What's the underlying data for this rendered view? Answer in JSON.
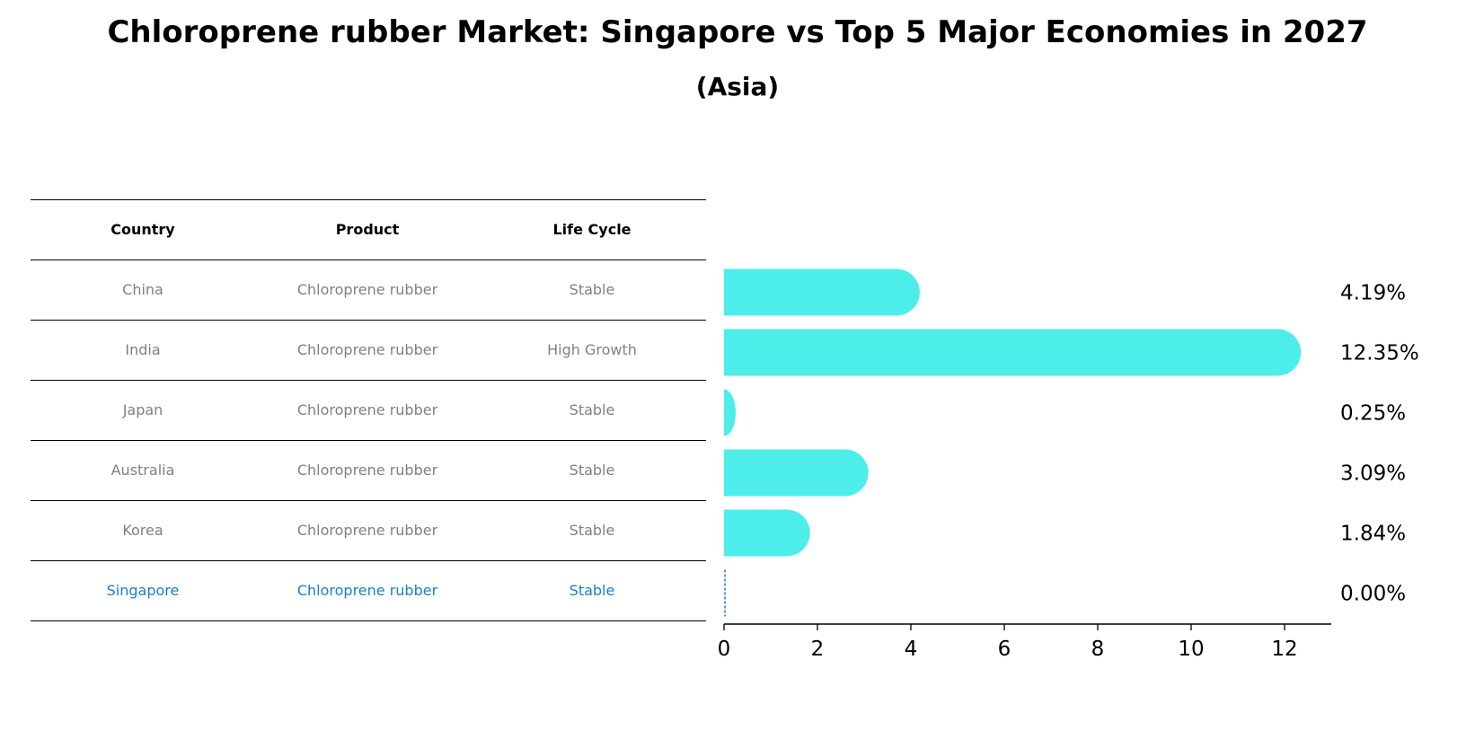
{
  "title": "Chloroprene rubber Market: Singapore vs Top 5 Major Economies in 2027",
  "subtitle": "(Asia)",
  "table": {
    "headers": [
      "Country",
      "Product",
      "Life Cycle"
    ],
    "rows": [
      [
        "China",
        "Chloroprene rubber",
        "Stable"
      ],
      [
        "India",
        "Chloroprene rubber",
        "High Growth"
      ],
      [
        "Japan",
        "Chloroprene rubber",
        "Stable"
      ],
      [
        "Australia",
        "Chloroprene rubber",
        "Stable"
      ],
      [
        "Korea",
        "Chloroprene rubber",
        "Stable"
      ],
      [
        "Singapore",
        "Chloroprene rubber",
        "Stable"
      ]
    ],
    "highlight_row": 5,
    "highlight_color": "#1a80c4"
  },
  "chart_data": {
    "type": "bar",
    "orientation": "horizontal",
    "categories": [
      "China",
      "India",
      "Japan",
      "Australia",
      "Korea",
      "Singapore"
    ],
    "values": [
      4.19,
      12.35,
      0.25,
      3.09,
      1.84,
      0.0
    ],
    "value_labels": [
      "4.19%",
      "12.35%",
      "0.25%",
      "3.09%",
      "1.84%",
      "0.00%"
    ],
    "xlim": [
      0,
      13
    ],
    "xticks": [
      0,
      2,
      4,
      6,
      8,
      10,
      12
    ],
    "xlabel": "",
    "ylabel": "",
    "bar_color": "#4deeea",
    "zero_line_color": "#1a80c4",
    "grid": false
  }
}
